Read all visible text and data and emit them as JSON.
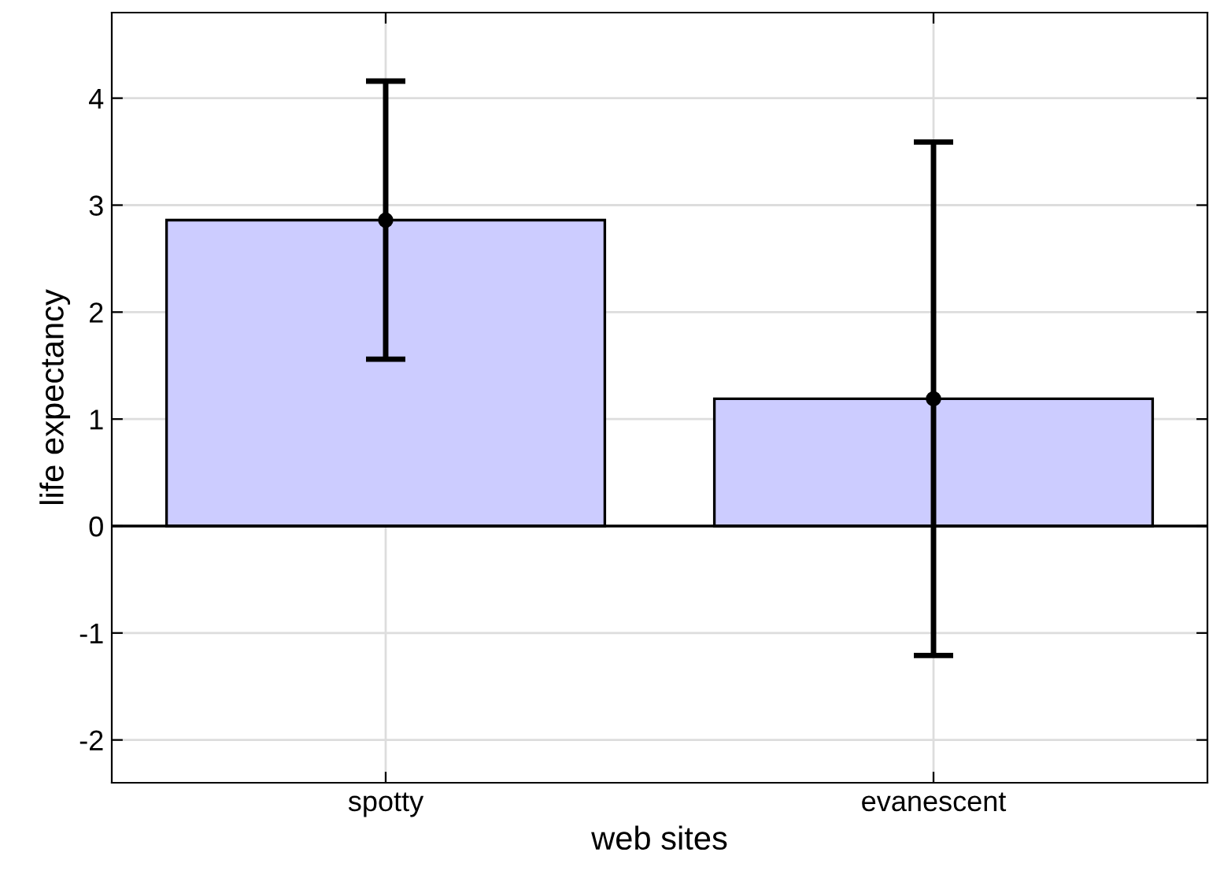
{
  "chart_data": {
    "type": "bar",
    "xlabel": "web sites",
    "ylabel": "life expectancy",
    "categories": [
      "spotty",
      "evanescent"
    ],
    "series": [
      {
        "color": "#ccccff",
        "values": [
          2.86,
          1.19
        ],
        "errors": [
          1.3,
          2.4
        ]
      },
      {
        "type": "scatter",
        "x": [
          "spotty",
          "evanescent"
        ],
        "color": "#000000",
        "values": [
          2.86,
          1.19
        ]
      }
    ],
    "ylim": [
      -2.4,
      4.8
    ],
    "yticks": [
      -2,
      -1,
      0,
      1,
      2,
      3,
      4
    ],
    "ref_lines": [
      {
        "axis": "y",
        "value": 0,
        "color": "#000000"
      }
    ],
    "grid": true,
    "marker": "circle"
  }
}
